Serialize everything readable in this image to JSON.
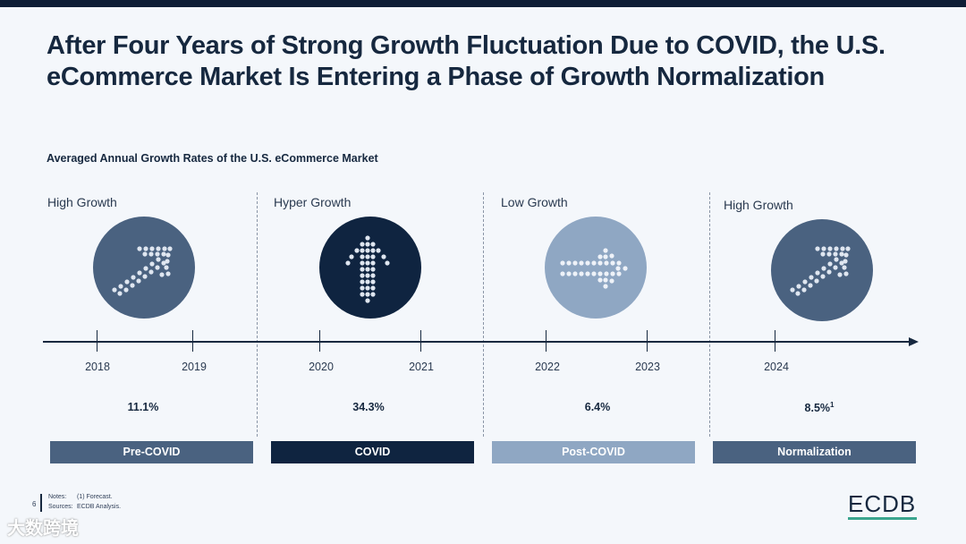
{
  "title": "After Four Years of Strong Growth Fluctuation Due to COVID, the U.S. eCommerce Market Is Entering a Phase of Growth Normalization",
  "subtitle": "Averaged Annual Growth Rates of the U.S. eCommerce Market",
  "phases": [
    {
      "label": "High Growth",
      "rate": "11.1%",
      "band": "Pre-COVID",
      "icon": "diagonal-arrow-icon",
      "circle_color": "#4a6280",
      "band_color": "#4a6280"
    },
    {
      "label": "Hyper Growth",
      "rate": "34.3%",
      "band": "COVID",
      "icon": "up-arrow-icon",
      "circle_color": "#0f2440",
      "band_color": "#0f2440"
    },
    {
      "label": "Low Growth",
      "rate": "6.4%",
      "band": "Post-COVID",
      "icon": "right-arrow-icon",
      "circle_color": "#8fa7c3",
      "band_color": "#8fa7c3"
    },
    {
      "label": "High Growth",
      "rate": "8.5%",
      "rate_note": "1",
      "band": "Normalization",
      "icon": "diagonal-arrow-icon",
      "circle_color": "#4a6280",
      "band_color": "#4a6280"
    }
  ],
  "years": [
    "2018",
    "2019",
    "2020",
    "2021",
    "2022",
    "2023",
    "2024"
  ],
  "notes": {
    "page": "6",
    "notes_label": "Notes:",
    "notes_value": "(1) Forecast.",
    "sources_label": "Sources:",
    "sources_value": "ECDB Analysis."
  },
  "logo": "ECDB",
  "watermark": "大数跨境",
  "colors": {
    "accent": "#3ba58f",
    "dark": "#16283f"
  }
}
